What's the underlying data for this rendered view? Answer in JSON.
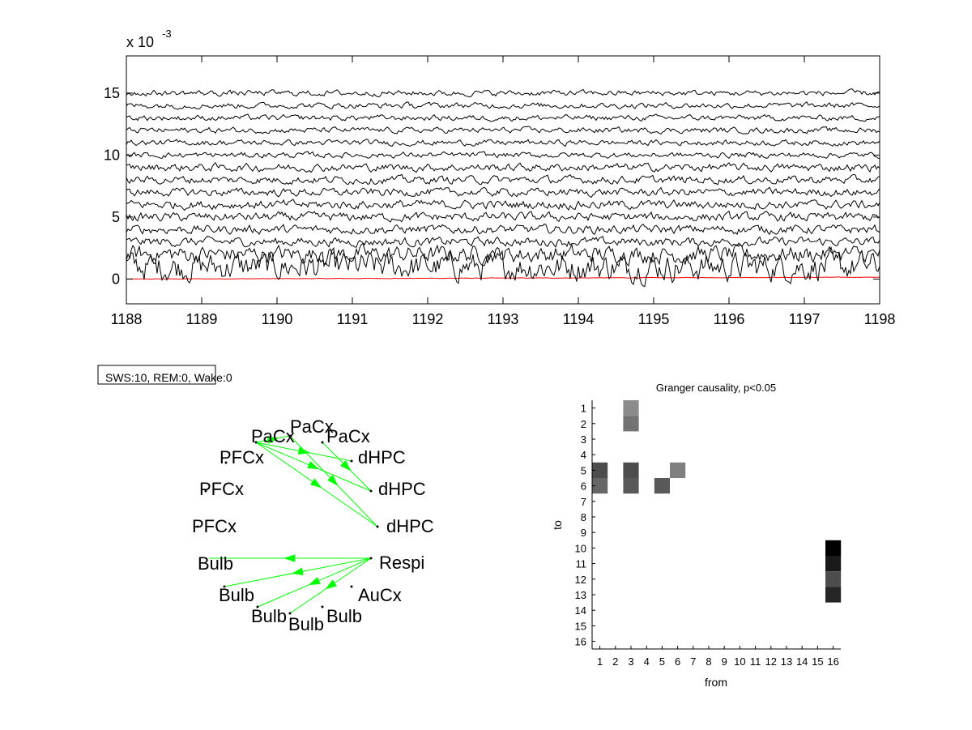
{
  "chart_data": [
    {
      "type": "line",
      "exponent_label": "x 10",
      "exponent_power": "-3",
      "xlim": [
        1188,
        1198
      ],
      "ylim": [
        -2,
        18
      ],
      "x_ticks": [
        "1188",
        "1189",
        "1190",
        "1191",
        "1192",
        "1193",
        "1194",
        "1195",
        "1196",
        "1197",
        "1198"
      ],
      "y_ticks": [
        "0",
        "5",
        "10",
        "15"
      ],
      "trace_offsets": [
        0,
        1,
        2,
        3,
        4,
        5,
        6,
        7,
        8,
        9,
        10,
        11,
        12,
        13,
        14,
        15
      ],
      "trace_colors": {
        "first": "#ff0000",
        "rest": "#000000"
      }
    },
    {
      "type": "diagram",
      "state_box": "SWS:10,  REM:0,  Wake:0",
      "nodes": [
        "Respi",
        "AuCx",
        "Bulb",
        "Bulb",
        "Bulb",
        "Bulb",
        "PFCx",
        "PFCx",
        "PFCx",
        "PaCx",
        "PaCx",
        "PaCx",
        "dHPC",
        "dHPC",
        "dHPC"
      ],
      "edge_color": "#00ff00",
      "edges": [
        [
          "PaCx",
          "PaCx"
        ],
        [
          "PaCx",
          "dHPC"
        ],
        [
          "PaCx",
          "dHPC"
        ],
        [
          "PaCx",
          "dHPC"
        ],
        [
          "PaCx",
          "dHPC"
        ],
        [
          "PaCx",
          "dHPC"
        ],
        [
          "Respi",
          "Bulb"
        ],
        [
          "Respi",
          "Bulb"
        ],
        [
          "Respi",
          "Bulb"
        ],
        [
          "Respi",
          "Bulb"
        ]
      ]
    },
    {
      "type": "heatmap",
      "title": "Granger causality, p<0.05",
      "xlabel": "from",
      "ylabel": "to",
      "x_ticks": [
        "1",
        "2",
        "3",
        "4",
        "5",
        "6",
        "7",
        "8",
        "9",
        "10",
        "11",
        "12",
        "13",
        "14",
        "15",
        "16"
      ],
      "y_ticks": [
        "1",
        "2",
        "3",
        "4",
        "5",
        "6",
        "7",
        "8",
        "9",
        "10",
        "11",
        "12",
        "13",
        "14",
        "15",
        "16"
      ],
      "cells": [
        {
          "to": 1,
          "from": 3,
          "value": 0.55
        },
        {
          "to": 2,
          "from": 3,
          "value": 0.45
        },
        {
          "to": 5,
          "from": 1,
          "value": 0.3
        },
        {
          "to": 5,
          "from": 3,
          "value": 0.3
        },
        {
          "to": 5,
          "from": 6,
          "value": 0.5
        },
        {
          "to": 6,
          "from": 1,
          "value": 0.4
        },
        {
          "to": 6,
          "from": 3,
          "value": 0.35
        },
        {
          "to": 6,
          "from": 5,
          "value": 0.35
        },
        {
          "to": 10,
          "from": 16,
          "value": 0.0
        },
        {
          "to": 11,
          "from": 16,
          "value": 0.1
        },
        {
          "to": 12,
          "from": 16,
          "value": 0.3
        },
        {
          "to": 13,
          "from": 16,
          "value": 0.15
        }
      ]
    }
  ]
}
